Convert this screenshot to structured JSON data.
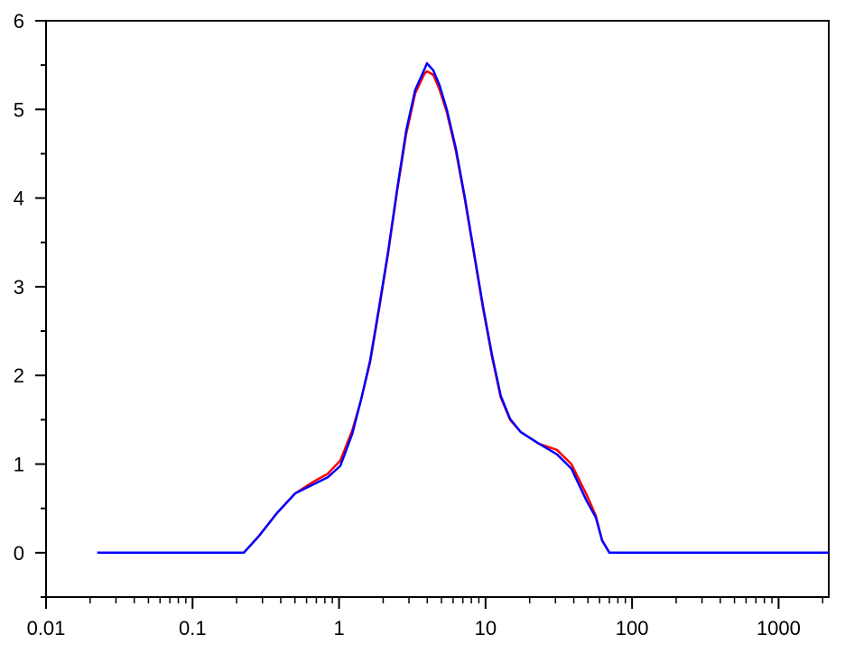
{
  "chart_data": {
    "type": "line",
    "title": "",
    "xlabel": "",
    "ylabel": "",
    "x_scale": "log",
    "xlim": [
      0.01,
      2200
    ],
    "ylim": [
      -0.5,
      6
    ],
    "grid": false,
    "legend": "none",
    "x_ticks": [
      {
        "value": 0.01,
        "label": "0.01"
      },
      {
        "value": 0.1,
        "label": "0.1"
      },
      {
        "value": 1,
        "label": "1"
      },
      {
        "value": 10,
        "label": "10"
      },
      {
        "value": 100,
        "label": "100"
      },
      {
        "value": 1000,
        "label": "1000"
      }
    ],
    "y_ticks": [
      {
        "value": 0,
        "label": "0"
      },
      {
        "value": 1,
        "label": "1"
      },
      {
        "value": 2,
        "label": "2"
      },
      {
        "value": 3,
        "label": "3"
      },
      {
        "value": 4,
        "label": "4"
      },
      {
        "value": 5,
        "label": "5"
      },
      {
        "value": 6,
        "label": "6"
      }
    ],
    "x": [
      0.0224,
      0.224,
      0.284,
      0.378,
      0.502,
      0.667,
      0.836,
      1.02,
      1.23,
      1.41,
      1.63,
      1.88,
      2.16,
      2.49,
      2.87,
      3.31,
      3.82,
      3.98,
      4.4,
      4.86,
      5.44,
      6.27,
      7.23,
      8.33,
      9.6,
      11.1,
      12.7,
      14.7,
      17.4,
      23.1,
      30.7,
      38.5,
      49.1,
      56.5,
      62.4,
      70.0,
      2200
    ],
    "series": [
      {
        "color": "#ff0000",
        "values": [
          0,
          0,
          0.19,
          0.45,
          0.67,
          0.8,
          0.89,
          1.04,
          1.38,
          1.72,
          2.15,
          2.76,
          3.37,
          4.08,
          4.72,
          5.18,
          5.4,
          5.43,
          5.39,
          5.22,
          4.97,
          4.53,
          3.98,
          3.37,
          2.76,
          2.2,
          1.75,
          1.5,
          1.36,
          1.23,
          1.16,
          1.0,
          0.65,
          0.42,
          0.14,
          0,
          0
        ]
      },
      {
        "color": "#0000ff",
        "values": [
          0,
          0,
          0.19,
          0.45,
          0.67,
          0.77,
          0.85,
          0.98,
          1.34,
          1.72,
          2.17,
          2.78,
          3.39,
          4.1,
          4.76,
          5.22,
          5.45,
          5.52,
          5.44,
          5.27,
          5.0,
          4.56,
          4.0,
          3.39,
          2.78,
          2.22,
          1.77,
          1.51,
          1.36,
          1.23,
          1.11,
          0.95,
          0.58,
          0.4,
          0.14,
          0,
          0
        ]
      }
    ]
  }
}
